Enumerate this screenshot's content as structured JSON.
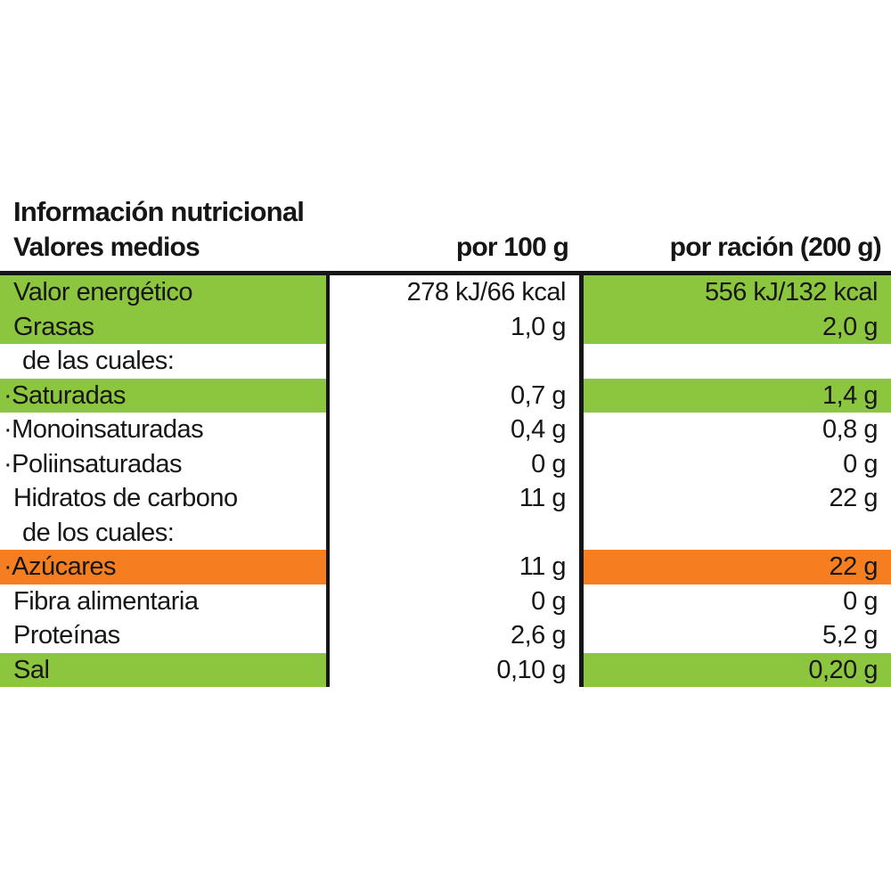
{
  "title": "Información nutricional",
  "header": {
    "label": "Valores medios",
    "per100": "por 100 g",
    "perPortion": "por ración (200 g)"
  },
  "colors": {
    "green": "#8cc63f",
    "orange": "#f57f20",
    "ink": "#161616"
  },
  "rows": [
    {
      "label": "Valor energético",
      "per100": "278 kJ/66 kcal",
      "perPortion": "556 kJ/132 kcal",
      "highlight": "green",
      "indent": "none"
    },
    {
      "label": "Grasas",
      "per100": "1,0 g",
      "perPortion": "2,0 g",
      "highlight": "green",
      "indent": "none"
    },
    {
      "label": "de las cuales:",
      "per100": "",
      "perPortion": "",
      "highlight": "none",
      "indent": "sub"
    },
    {
      "label": "·Saturadas",
      "per100": "0,7 g",
      "perPortion": "1,4 g",
      "highlight": "green",
      "indent": "dot"
    },
    {
      "label": "·Monoinsaturadas",
      "per100": "0,4 g",
      "perPortion": "0,8 g",
      "highlight": "none",
      "indent": "dot"
    },
    {
      "label": "·Poliinsaturadas",
      "per100": "0 g",
      "perPortion": "0 g",
      "highlight": "none",
      "indent": "dot"
    },
    {
      "label": "Hidratos de carbono",
      "per100": "11 g",
      "perPortion": "22 g",
      "highlight": "none",
      "indent": "none"
    },
    {
      "label": "de los cuales:",
      "per100": "",
      "perPortion": "",
      "highlight": "none",
      "indent": "sub"
    },
    {
      "label": "·Azúcares",
      "per100": "11 g",
      "perPortion": "22 g",
      "highlight": "orange",
      "indent": "dot"
    },
    {
      "label": "Fibra alimentaria",
      "per100": "0 g",
      "perPortion": "0 g",
      "highlight": "none",
      "indent": "none"
    },
    {
      "label": "Proteínas",
      "per100": "2,6 g",
      "perPortion": "5,2 g",
      "highlight": "none",
      "indent": "none"
    },
    {
      "label": "Sal",
      "per100": "0,10 g",
      "perPortion": "0,20 g",
      "highlight": "green",
      "indent": "none"
    }
  ]
}
